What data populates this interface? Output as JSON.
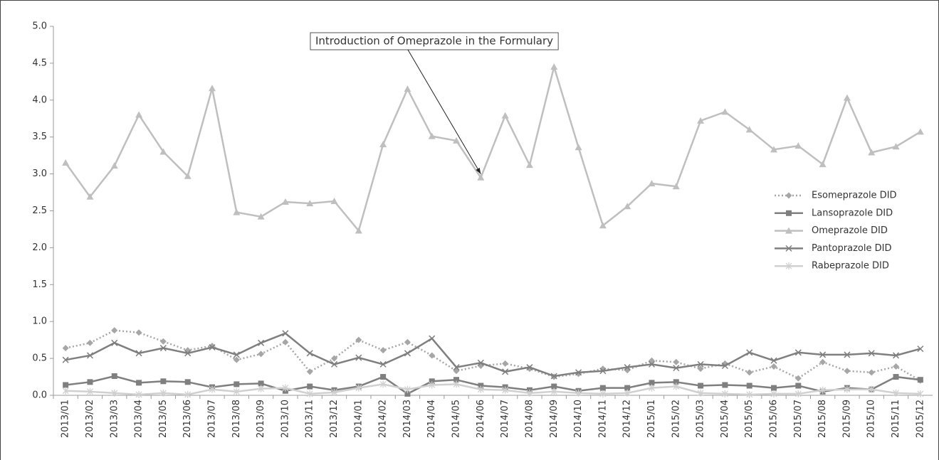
{
  "chart_data": {
    "type": "line",
    "annotation": {
      "text": "Introduction of Omeprazole in the Formulary",
      "target": "2014/06"
    },
    "categories": [
      "2013/01",
      "2013/02",
      "2013/03",
      "2013/04",
      "2013/05",
      "2013/06",
      "2013/07",
      "2013/08",
      "2013/09",
      "2013/10",
      "2013/11",
      "2013/12",
      "2014/01",
      "2014/02",
      "2014/03",
      "2014/04",
      "2014/05",
      "2014/06",
      "2014/07",
      "2014/08",
      "2014/09",
      "2014/10",
      "2014/11",
      "2014/12",
      "2015/01",
      "2015/02",
      "2015/03",
      "2015/04",
      "2015/05",
      "2015/06",
      "2015/07",
      "2015/08",
      "2015/09",
      "2015/10",
      "2015/11",
      "2015/12"
    ],
    "series": [
      {
        "name": "Esomeprazole DID",
        "color": "#a6a6a6",
        "marker": "diamond",
        "dash": true,
        "values": [
          0.64,
          0.71,
          0.88,
          0.85,
          0.73,
          0.61,
          0.67,
          0.48,
          0.56,
          0.72,
          0.32,
          0.5,
          0.75,
          0.61,
          0.72,
          0.54,
          0.33,
          0.4,
          0.43,
          0.36,
          0.25,
          0.29,
          0.36,
          0.34,
          0.47,
          0.45,
          0.36,
          0.43,
          0.31,
          0.39,
          0.23,
          0.45,
          0.33,
          0.31,
          0.39,
          0.2
        ]
      },
      {
        "name": "Lansoprazole DID",
        "color": "#7f7f7f",
        "marker": "square",
        "dash": false,
        "values": [
          0.14,
          0.18,
          0.26,
          0.17,
          0.19,
          0.18,
          0.11,
          0.15,
          0.16,
          0.06,
          0.12,
          0.07,
          0.12,
          0.25,
          0.02,
          0.19,
          0.21,
          0.13,
          0.11,
          0.07,
          0.12,
          0.06,
          0.1,
          0.1,
          0.17,
          0.18,
          0.13,
          0.14,
          0.13,
          0.1,
          0.13,
          0.05,
          0.1,
          0.08,
          0.25,
          0.21
        ]
      },
      {
        "name": "Omeprazole DID",
        "color": "#bfbfbf",
        "marker": "triangle",
        "dash": false,
        "values": [
          3.15,
          2.69,
          3.11,
          3.8,
          3.3,
          2.97,
          4.16,
          2.48,
          2.42,
          2.62,
          2.6,
          2.63,
          2.23,
          3.4,
          4.15,
          3.51,
          3.45,
          2.95,
          3.79,
          3.12,
          4.45,
          3.36,
          2.3,
          2.56,
          2.87,
          2.83,
          3.72,
          3.84,
          3.6,
          3.33,
          3.38,
          3.13,
          4.03,
          3.29,
          3.37,
          3.57
        ]
      },
      {
        "name": "Pantoprazole DID",
        "color": "#7f7f7f",
        "marker": "x",
        "dash": false,
        "values": [
          0.48,
          0.54,
          0.71,
          0.57,
          0.64,
          0.57,
          0.65,
          0.55,
          0.71,
          0.84,
          0.57,
          0.42,
          0.51,
          0.42,
          0.57,
          0.77,
          0.38,
          0.44,
          0.32,
          0.38,
          0.26,
          0.31,
          0.33,
          0.38,
          0.42,
          0.37,
          0.42,
          0.4,
          0.58,
          0.47,
          0.58,
          0.55,
          0.55,
          0.57,
          0.54,
          0.63
        ]
      },
      {
        "name": "Rabeprazole DID",
        "color": "#d0d0d0",
        "marker": "star",
        "dash": false,
        "values": [
          0.06,
          0.05,
          0.03,
          0.01,
          0.03,
          0.01,
          0.08,
          0.05,
          0.09,
          0.1,
          0.02,
          0.04,
          0.1,
          0.15,
          0.08,
          0.14,
          0.15,
          0.08,
          0.07,
          0.03,
          0.05,
          0.03,
          0.02,
          0.03,
          0.1,
          0.12,
          0.03,
          0.02,
          0.01,
          0.02,
          0.02,
          0.07,
          0.08,
          0.08,
          0.03,
          0.02
        ]
      }
    ],
    "ylim": [
      0,
      5
    ],
    "yticks": [
      {
        "value": 0,
        "label": "0.0"
      },
      {
        "value": 0.5,
        "label": "0.5"
      },
      {
        "value": 1,
        "label": "1.0"
      },
      {
        "value": 1.5,
        "label": "1.5"
      },
      {
        "value": 2,
        "label": "2.0"
      },
      {
        "value": 2.5,
        "label": "2.5"
      },
      {
        "value": 3,
        "label": "3.0"
      },
      {
        "value": 3.5,
        "label": "3.5"
      },
      {
        "value": 4,
        "label": "4.0"
      },
      {
        "value": 4.5,
        "label": "4.5"
      },
      {
        "value": 5,
        "label": "5.0"
      }
    ],
    "grid": false,
    "legend": "right"
  }
}
